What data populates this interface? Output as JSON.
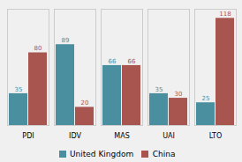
{
  "chart_data": {
    "type": "bar",
    "categories": [
      "PDI",
      "IDV",
      "MAS",
      "UAI",
      "LTO"
    ],
    "series": [
      {
        "name": "United Kingdom",
        "color": "#4a8fa0",
        "values": [
          35,
          89,
          66,
          35,
          25
        ]
      },
      {
        "name": "China",
        "color": "#a85550",
        "values": [
          80,
          20,
          66,
          30,
          118
        ]
      }
    ],
    "ylim": [
      0,
      128
    ],
    "yticks": [],
    "grid": false,
    "data_labels": true,
    "tick_labels": "x",
    "legend": "bottom"
  }
}
